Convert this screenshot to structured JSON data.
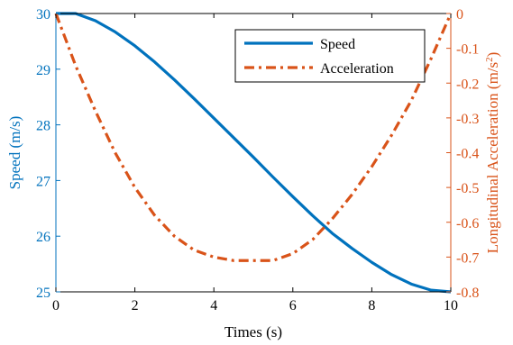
{
  "chart_data": {
    "type": "line",
    "xlabel": "Times (s)",
    "ylabel_left": "Speed (m/s)",
    "ylabel_right": "Longitudinal Acceleration (m/s",
    "ylabel_right_exponent": "2",
    "ylabel_right_suffix": ")",
    "xlim": [
      0,
      10
    ],
    "ylim_left": [
      25,
      30
    ],
    "ylim_right": [
      -0.8,
      0
    ],
    "x_ticks": [
      "0",
      "2",
      "4",
      "6",
      "8",
      "10"
    ],
    "y_left_ticks": [
      "25",
      "26",
      "27",
      "28",
      "29",
      "30"
    ],
    "y_right_ticks": [
      "0",
      "-0.1",
      "-0.2",
      "-0.3",
      "-0.4",
      "-0.5",
      "-0.6",
      "-0.7",
      "-0.8"
    ],
    "legend_position": "top-right",
    "colors": {
      "speed": "#0072BD",
      "acceleration": "#D95319",
      "axis_left": "#0072BD",
      "axis_right": "#D95319"
    },
    "series": [
      {
        "name": "Speed",
        "axis": "left",
        "style": "solid",
        "x": [
          0,
          0.5,
          1,
          1.5,
          2,
          2.5,
          3,
          3.5,
          4,
          4.5,
          5,
          5.5,
          6,
          6.5,
          7,
          7.5,
          8,
          8.5,
          9,
          9.5,
          10
        ],
        "y": [
          30,
          30,
          29.87,
          29.67,
          29.42,
          29.13,
          28.81,
          28.47,
          28.12,
          27.77,
          27.42,
          27.06,
          26.71,
          26.37,
          26.05,
          25.78,
          25.53,
          25.31,
          25.14,
          25.03,
          25
        ]
      },
      {
        "name": "Acceleration",
        "axis": "right",
        "style": "dashdot",
        "x": [
          0,
          0.5,
          1,
          1.5,
          2,
          2.5,
          3,
          3.5,
          4,
          4.5,
          5,
          5.5,
          6,
          6.5,
          7,
          7.5,
          8,
          8.5,
          9,
          9.5,
          10
        ],
        "y": [
          0,
          -0.15,
          -0.28,
          -0.4,
          -0.5,
          -0.58,
          -0.64,
          -0.68,
          -0.7,
          -0.71,
          -0.71,
          -0.71,
          -0.69,
          -0.65,
          -0.59,
          -0.52,
          -0.44,
          -0.35,
          -0.25,
          -0.13,
          0
        ]
      }
    ]
  }
}
